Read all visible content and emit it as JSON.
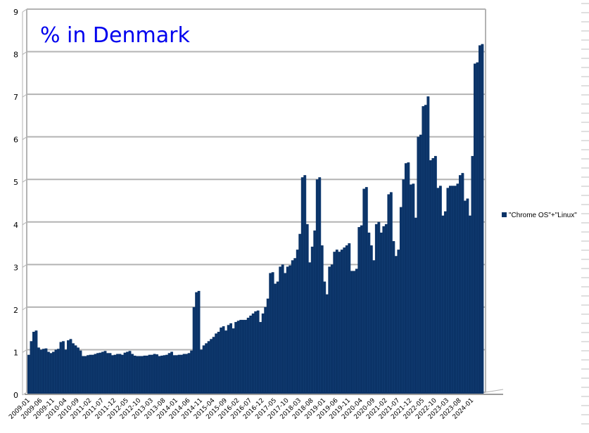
{
  "chart_data": {
    "type": "bar",
    "title": "% in Denmark",
    "xlabel": "",
    "ylabel": "",
    "ylim": [
      0,
      9
    ],
    "yticks": [
      0,
      1,
      2,
      3,
      4,
      5,
      6,
      7,
      8,
      9
    ],
    "grid": true,
    "legend_position": "right",
    "bar_color": "#0b3367",
    "title_color": "#0000ee",
    "x_tick_labels": [
      "2009-01",
      "2009-06",
      "2009-11",
      "2010-04",
      "2010-09",
      "2011-02",
      "2011-07",
      "2011-12",
      "2012-05",
      "2012-10",
      "2013-03",
      "2013-08",
      "2014-01",
      "2014-06",
      "2014-11",
      "2015-04",
      "2015-09",
      "2016-02",
      "2016-07",
      "2016-12",
      "2017-05",
      "2017-10",
      "2018-03",
      "2018-08",
      "2019-01",
      "2019-06",
      "2019-11",
      "2020-04",
      "2020-09",
      "2021-02",
      "2021-07",
      "2021-12",
      "2022-05",
      "2022-10",
      "2023-03",
      "2023-08",
      "2024-01"
    ],
    "start_month": "2009-01",
    "series": [
      {
        "name": "\"Chrome OS\"+\"Linux\"",
        "values": [
          0.88,
          1.2,
          1.42,
          1.45,
          1.05,
          1.0,
          1.02,
          1.03,
          0.95,
          0.92,
          0.95,
          1.0,
          1.02,
          1.18,
          1.2,
          1.0,
          1.22,
          1.25,
          1.15,
          1.1,
          1.05,
          0.98,
          0.85,
          0.85,
          0.87,
          0.88,
          0.88,
          0.9,
          0.92,
          0.93,
          0.95,
          0.97,
          0.92,
          0.92,
          0.87,
          0.88,
          0.9,
          0.9,
          0.88,
          0.93,
          0.95,
          0.97,
          0.9,
          0.86,
          0.85,
          0.85,
          0.85,
          0.86,
          0.86,
          0.88,
          0.88,
          0.9,
          0.89,
          0.85,
          0.86,
          0.87,
          0.88,
          0.92,
          0.95,
          0.87,
          0.87,
          0.88,
          0.88,
          0.9,
          0.9,
          0.92,
          0.98,
          2.0,
          2.35,
          2.38,
          1.0,
          1.1,
          1.15,
          1.2,
          1.25,
          1.3,
          1.38,
          1.42,
          1.52,
          1.55,
          1.45,
          1.58,
          1.62,
          1.5,
          1.65,
          1.68,
          1.7,
          1.7,
          1.7,
          1.75,
          1.8,
          1.85,
          1.9,
          1.92,
          1.65,
          1.85,
          2.0,
          2.2,
          2.8,
          2.82,
          2.55,
          2.6,
          2.95,
          3.0,
          2.8,
          2.95,
          2.98,
          3.1,
          3.15,
          3.35,
          3.72,
          5.05,
          5.1,
          3.95,
          3.05,
          3.42,
          3.8,
          5.0,
          5.05,
          3.45,
          2.6,
          2.3,
          2.95,
          3.0,
          3.3,
          3.35,
          3.3,
          3.35,
          3.4,
          3.45,
          3.5,
          2.85,
          2.85,
          2.9,
          3.88,
          3.92,
          4.78,
          4.82,
          3.75,
          3.45,
          3.1,
          3.95,
          4.0,
          3.75,
          3.9,
          3.95,
          4.65,
          4.7,
          3.55,
          3.2,
          3.35,
          4.35,
          5.0,
          5.38,
          5.4,
          4.88,
          4.9,
          4.1,
          6.0,
          6.05,
          6.72,
          6.75,
          6.95,
          5.45,
          5.5,
          5.55,
          4.8,
          4.85,
          4.15,
          4.25,
          4.8,
          4.85,
          4.85,
          4.85,
          4.9,
          5.1,
          5.15,
          4.5,
          4.55,
          4.15,
          5.55,
          7.72,
          7.75,
          8.15,
          8.18
        ]
      }
    ]
  },
  "legend": {
    "items": [
      {
        "label": "\"Chrome OS\"+\"Linux\"",
        "color": "#0b3367"
      }
    ]
  }
}
